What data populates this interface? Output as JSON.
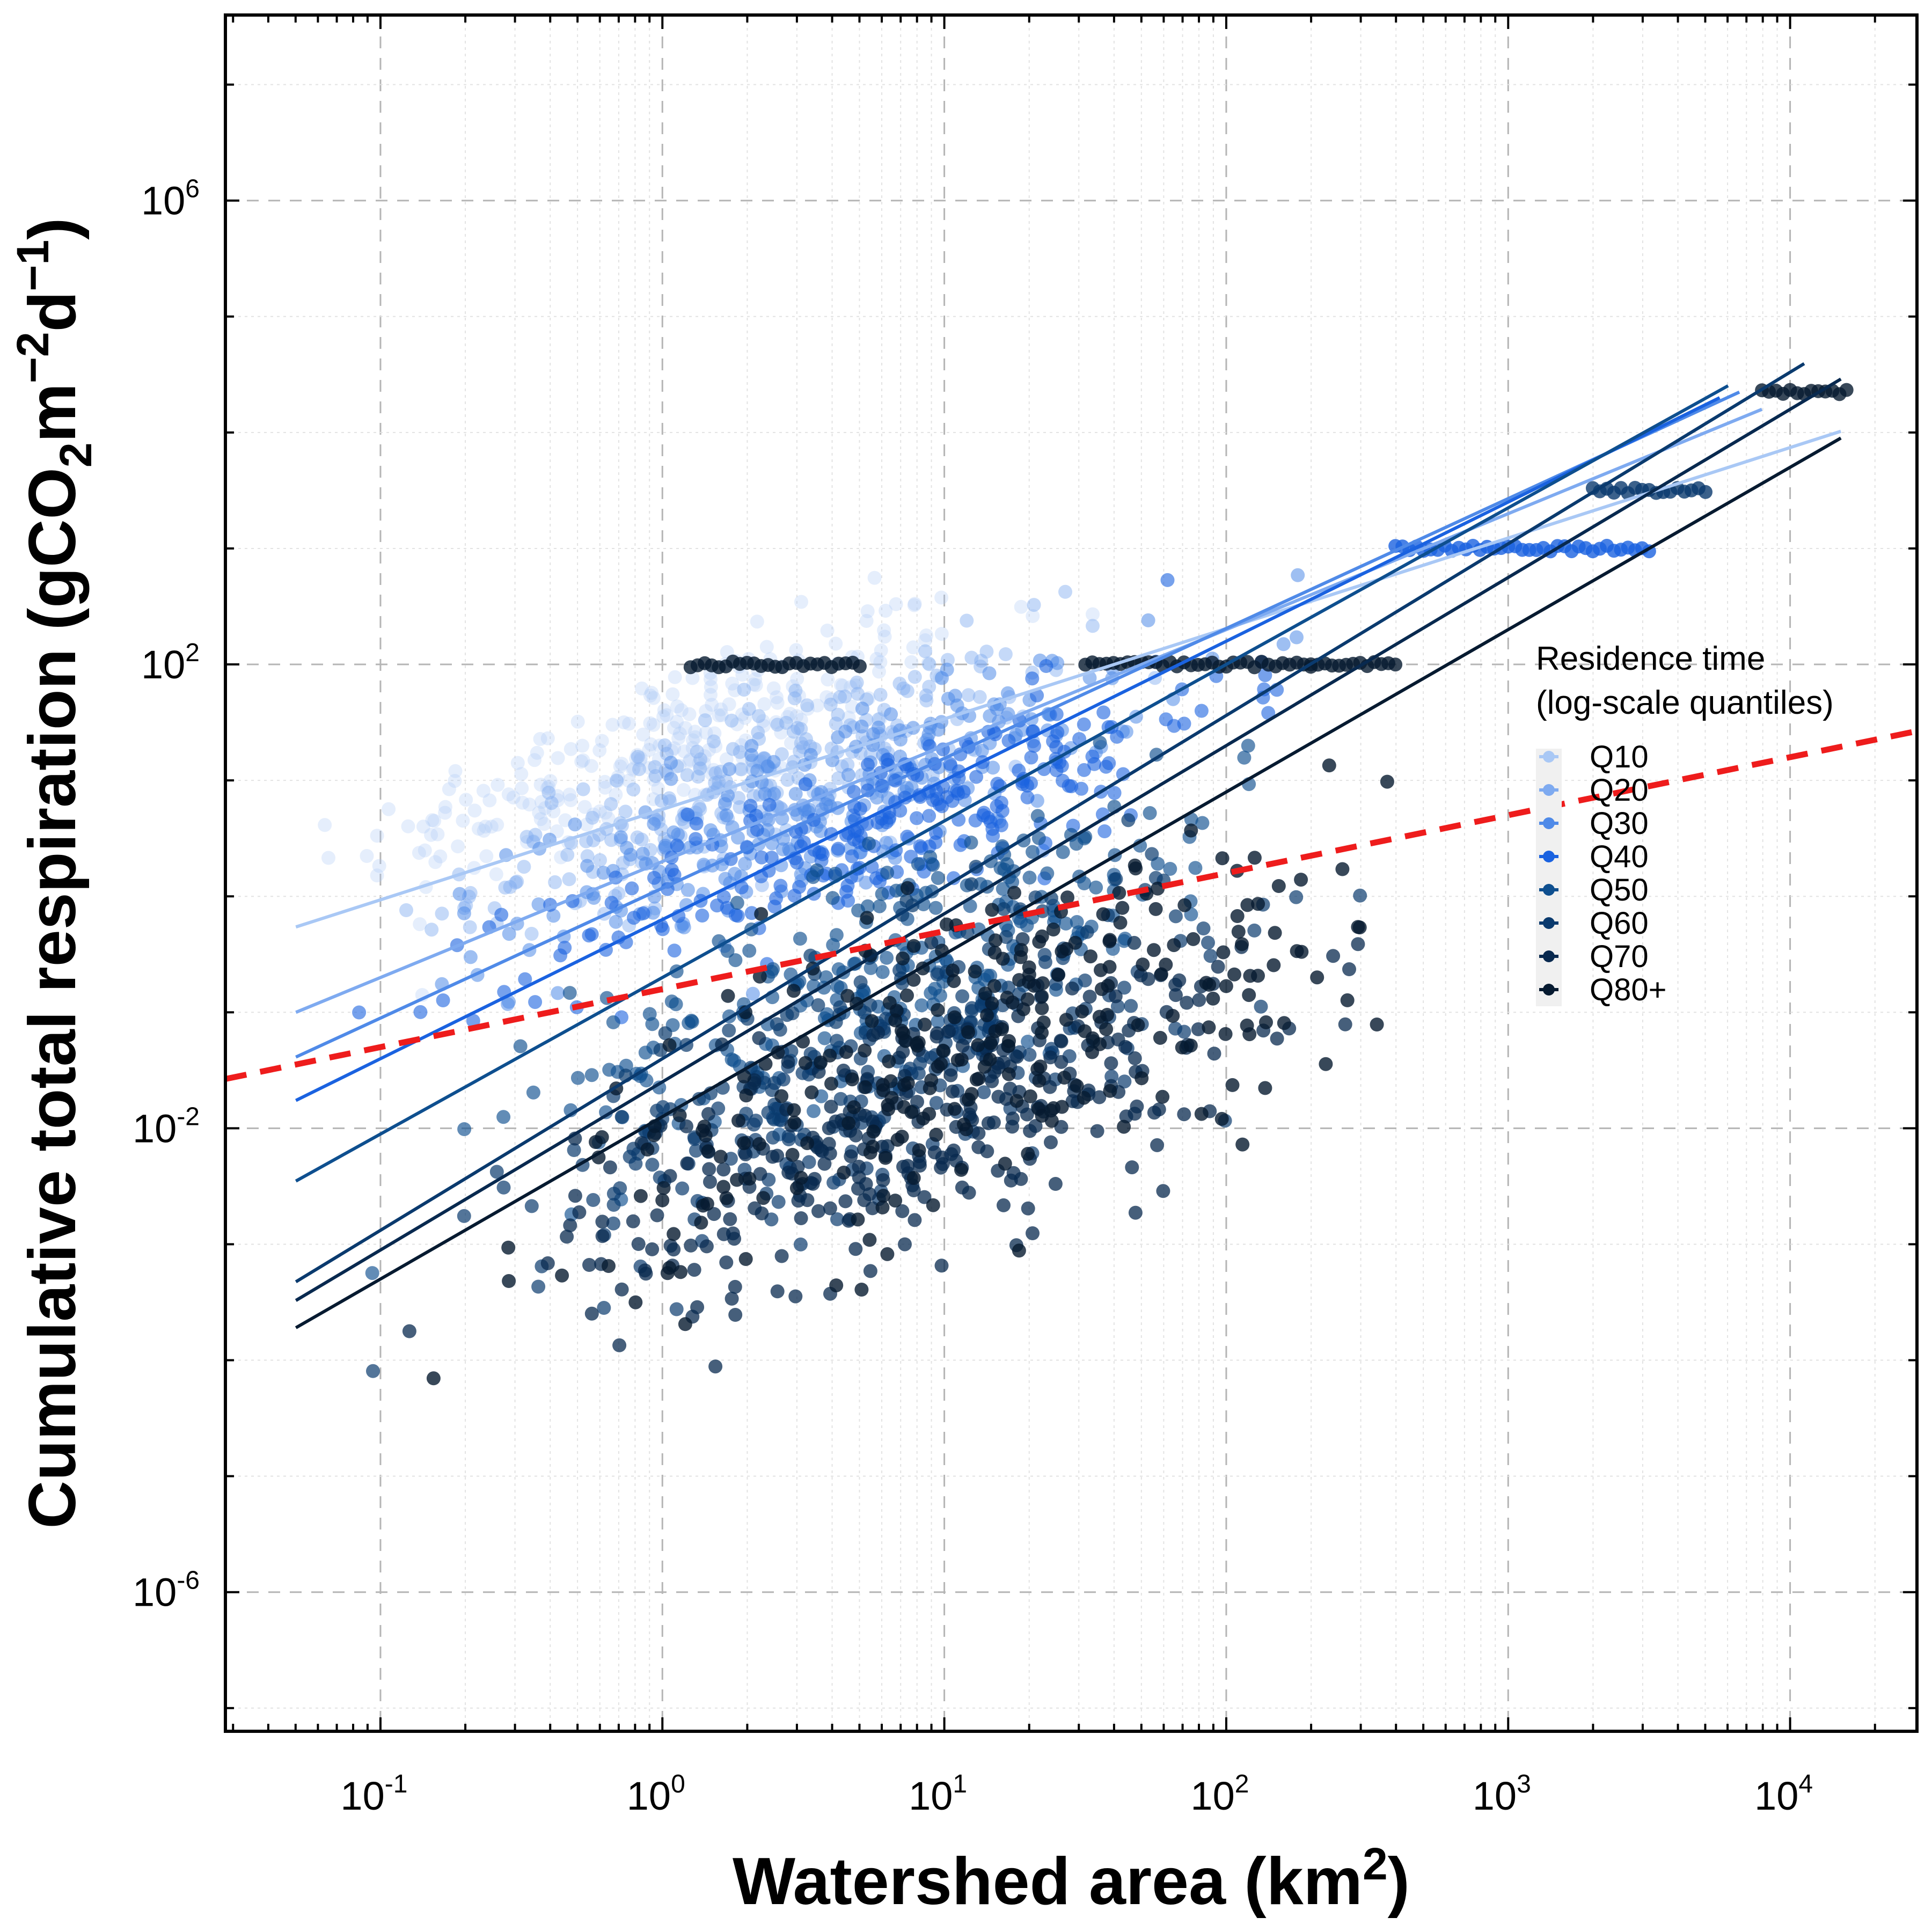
{
  "chart_data": {
    "type": "scatter",
    "xscale": "log",
    "yscale": "log",
    "xlabel_main": "Watershed area (km",
    "xlabel_sup": "2",
    "xlabel_end": ")",
    "ylabel_main": "Cumulative total respiration (gCO",
    "ylabel_sub": "2",
    "ylabel_m": "m",
    "ylabel_sup1": "−2",
    "ylabel_d": "d",
    "ylabel_sup2": "−1",
    "ylabel_end": ")",
    "xlim_log10": [
      -1.55,
      4.45
    ],
    "ylim_log10": [
      -7.2,
      7.6
    ],
    "x_ticks": [
      {
        "base": "10",
        "exp": "-1",
        "log": -1
      },
      {
        "base": "10",
        "exp": "0",
        "log": 0
      },
      {
        "base": "10",
        "exp": "1",
        "log": 1
      },
      {
        "base": "10",
        "exp": "2",
        "log": 2
      },
      {
        "base": "10",
        "exp": "3",
        "log": 3
      },
      {
        "base": "10",
        "exp": "4",
        "log": 4
      }
    ],
    "y_ticks": [
      {
        "base": "10",
        "exp": "-6",
        "log": -6
      },
      {
        "base": "10",
        "exp": "-2",
        "log": -2
      },
      {
        "base": "10",
        "exp": "2",
        "log": 2
      },
      {
        "base": "10",
        "exp": "6",
        "log": 6
      }
    ],
    "grid": true,
    "legend_title_line1": "Residence time",
    "legend_title_line2": "(log-scale quantiles)",
    "legend_position": "right-middle",
    "series": [
      {
        "name": "Q10",
        "color": "#a9c8f5",
        "fit_intercept_log10": 0.75,
        "fit_slope": 0.78,
        "fit_x_log10": [
          -1.3,
          4.18
        ],
        "cloud_center_log10": [
          0.0,
          1.3
        ],
        "cloud_spread_log10": [
          0.55,
          0.55
        ],
        "alpha": 0.3
      },
      {
        "name": "Q20",
        "color": "#7eaaf0",
        "fit_intercept_log10": 0.3,
        "fit_slope": 1.0,
        "fit_x_log10": [
          -1.3,
          3.9
        ],
        "cloud_center_log10": [
          0.35,
          1.0
        ],
        "cloud_spread_log10": [
          0.5,
          0.55
        ],
        "alpha": 0.45
      },
      {
        "name": "Q30",
        "color": "#4f8ae8",
        "fit_intercept_log10": 0.07,
        "fit_slope": 1.12,
        "fit_x_log10": [
          -1.3,
          3.82
        ],
        "cloud_center_log10": [
          0.6,
          0.8
        ],
        "cloud_spread_log10": [
          0.55,
          0.6
        ],
        "alpha": 0.55
      },
      {
        "name": "Q40",
        "color": "#1a62e0",
        "fit_intercept_log10": -0.2,
        "fit_slope": 1.2,
        "fit_x_log10": [
          -1.3,
          3.75
        ],
        "cloud_center_log10": [
          0.8,
          0.6
        ],
        "cloud_spread_log10": [
          0.6,
          0.6
        ],
        "alpha": 0.6
      },
      {
        "name": "Q50",
        "color": "#0e4f8f",
        "fit_intercept_log10": -0.7,
        "fit_slope": 1.35,
        "fit_x_log10": [
          -1.3,
          3.78
        ],
        "cloud_center_log10": [
          0.9,
          -0.5
        ],
        "cloud_spread_log10": [
          0.6,
          0.8
        ],
        "alpha": 0.65
      },
      {
        "name": "Q60",
        "color": "#0a3a6e",
        "fit_intercept_log10": -1.4,
        "fit_slope": 1.48,
        "fit_x_log10": [
          -1.3,
          4.05
        ],
        "cloud_center_log10": [
          0.75,
          -1.5
        ],
        "cloud_spread_log10": [
          0.6,
          0.9
        ],
        "alpha": 0.7
      },
      {
        "name": "Q70",
        "color": "#08294f",
        "fit_intercept_log10": -1.6,
        "fit_slope": 1.45,
        "fit_x_log10": [
          -1.3,
          4.18
        ],
        "cloud_center_log10": [
          0.9,
          -2.0
        ],
        "cloud_spread_log10": [
          0.6,
          0.9
        ],
        "alpha": 0.75
      },
      {
        "name": "Q80+",
        "color": "#061a30",
        "fit_intercept_log10": -1.9,
        "fit_slope": 1.4,
        "fit_x_log10": [
          -1.3,
          4.18
        ],
        "cloud_center_log10": [
          1.2,
          -1.2
        ],
        "cloud_spread_log10": [
          0.75,
          1.1
        ],
        "alpha": 0.8
      }
    ],
    "reference_line": {
      "style": "dashed",
      "color": "#ee1c1c",
      "intercept_log10": -0.8,
      "slope": 0.5
    },
    "horizontal_clusters": [
      {
        "x_range_log10": [
          0.1,
          0.7
        ],
        "y_log10": 2.0,
        "color": "#061a30"
      },
      {
        "x_range_log10": [
          1.5,
          2.3
        ],
        "y_log10": 2.0,
        "color": "#061a30"
      },
      {
        "x_range_log10": [
          2.3,
          2.6
        ],
        "y_log10": 2.0,
        "color": "#061a30"
      },
      {
        "x_range_log10": [
          3.3,
          3.7
        ],
        "y_log10": 3.5,
        "color": "#0a3a6e"
      },
      {
        "x_range_log10": [
          3.9,
          4.2
        ],
        "y_log10": 4.35,
        "color": "#061a30"
      },
      {
        "x_range_log10": [
          2.6,
          3.5
        ],
        "y_log10": 3.0,
        "color": "#1a62e0"
      }
    ]
  }
}
